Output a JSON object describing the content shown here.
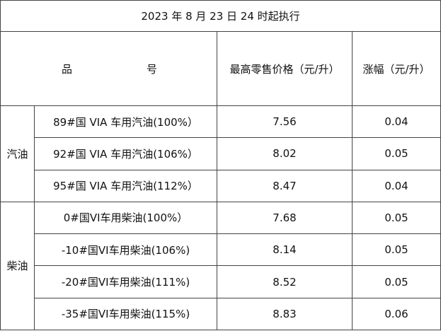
{
  "title": "2023 年 8 月 23 日 24 时起执行",
  "header": {
    "product_part1": "品",
    "product_part2": "号",
    "price": "最高零售价格（元/升）",
    "change": "涨幅（元/升）"
  },
  "groups": [
    {
      "category": "汽油",
      "rows": [
        {
          "name": "89#国 VIA 车用汽油(100%）",
          "price": "7.56",
          "change": "0.04"
        },
        {
          "name": "92#国 VIA 车用汽油(106%）",
          "price": "8.02",
          "change": "0.05"
        },
        {
          "name": "95#国 VIA 车用汽油(112%）",
          "price": "8.47",
          "change": "0.04"
        }
      ]
    },
    {
      "category": "柴油",
      "rows": [
        {
          "name": "0#国VI车用柴油(100%）",
          "price": "7.68",
          "change": "0.05"
        },
        {
          "name": "-10#国VI车用柴油(106%)",
          "price": "8.14",
          "change": "0.05"
        },
        {
          "name": "-20#国VI车用柴油(111%)",
          "price": "8.52",
          "change": "0.05"
        },
        {
          "name": "-35#国VI车用柴油(115%)",
          "price": "8.83",
          "change": "0.06"
        }
      ]
    }
  ]
}
